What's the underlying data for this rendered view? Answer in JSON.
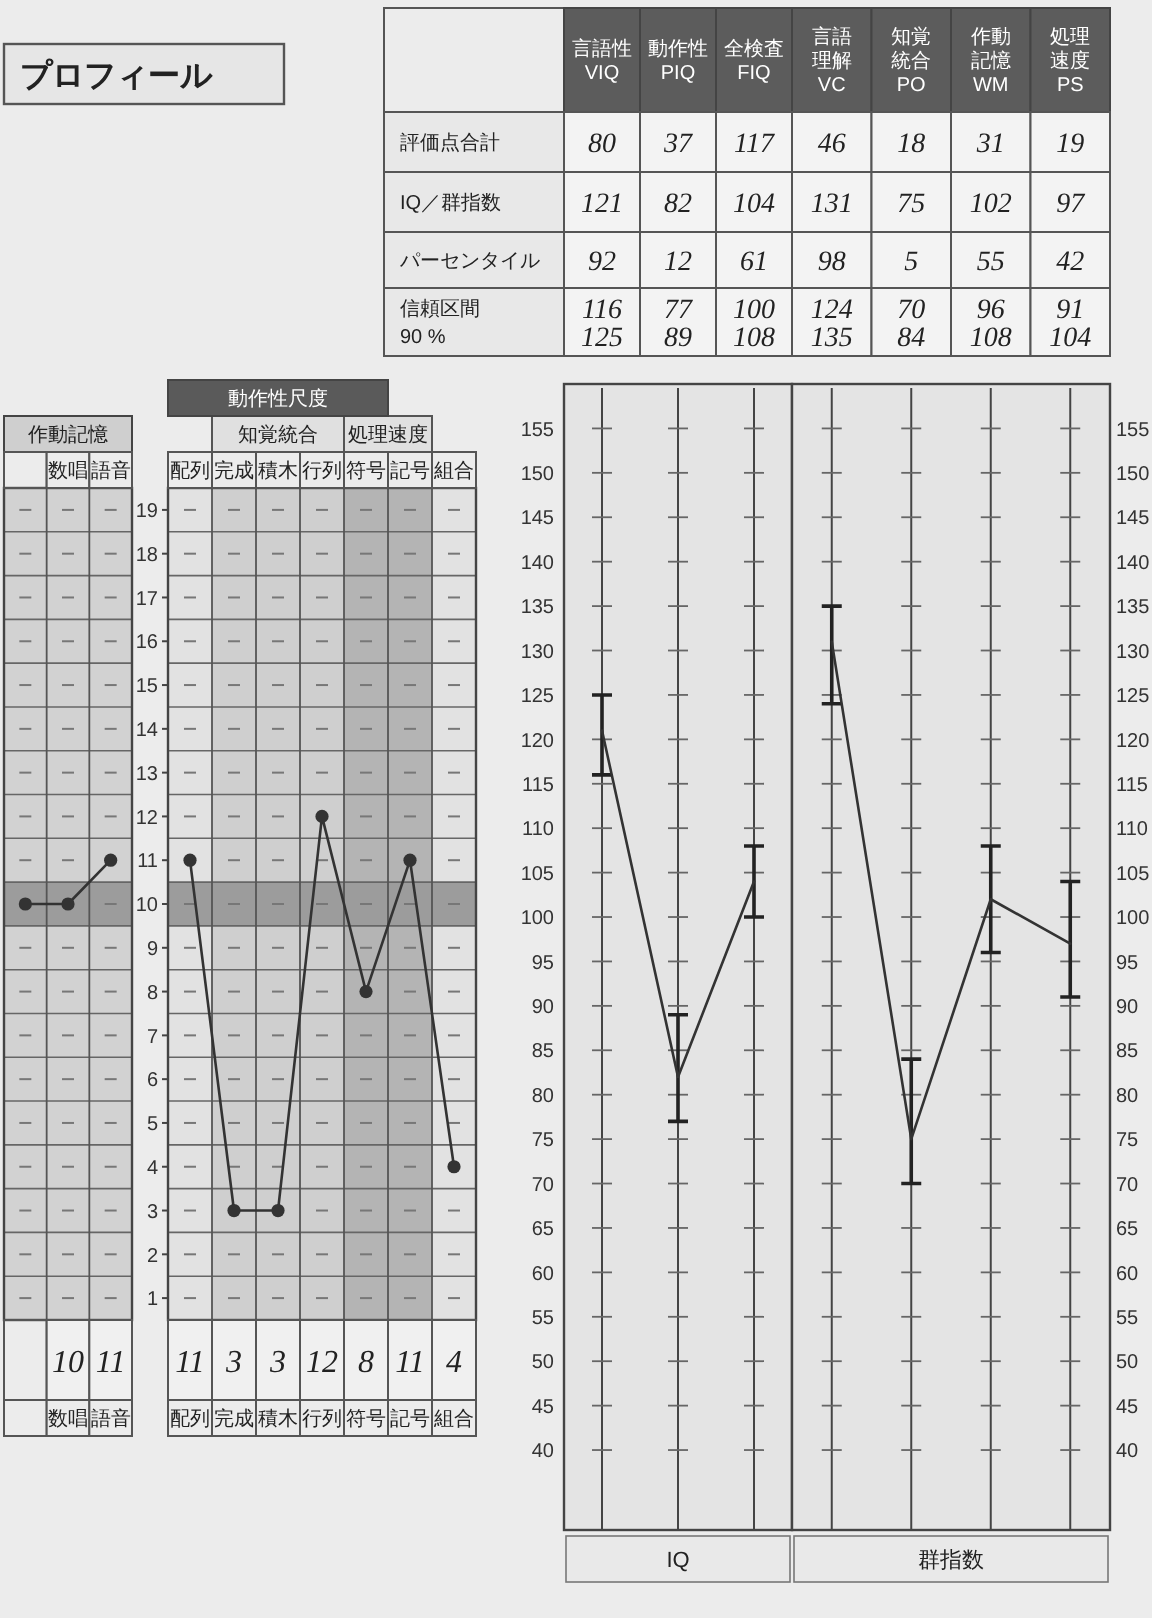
{
  "chart_data": [
    {
      "type": "other",
      "title": "プロフィール",
      "categories": [
        "言語性\nVIQ",
        "動作性\nPIQ",
        "全検査\nFIQ",
        "言語理解\nVC",
        "知覚統合\nPO",
        "作動記憶\nWM",
        "処理速度\nPS"
      ],
      "y_categories": [
        "評価点合計",
        "IQ／群指数",
        "パーセンタイル",
        "信頼区間\n90 %"
      ],
      "cell_labels": [
        [
          "80",
          "37",
          "117",
          "46",
          "18",
          "31",
          "19"
        ],
        [
          "121",
          "82",
          "104",
          "131",
          "75",
          "102",
          "97"
        ],
        [
          "92",
          "12",
          "61",
          "98",
          "5",
          "55",
          "42"
        ],
        [
          "116\n125",
          "77\n89",
          "100\n108",
          "124\n135",
          "70\n84",
          "96\n108",
          "91\n104"
        ]
      ]
    },
    {
      "type": "line",
      "title": "作動記憶",
      "categories": [
        null,
        "数唱",
        "語音"
      ],
      "values": [
        10,
        10,
        11
      ],
      "value_labels": [
        null,
        "10",
        "11"
      ],
      "color": "#333333",
      "ylim": [
        0.5,
        19.5
      ],
      "yticks": [
        1,
        2,
        3,
        4,
        5,
        6,
        7,
        8,
        9,
        10,
        11,
        12,
        13,
        14,
        15,
        16,
        17,
        18,
        19
      ],
      "tick_labels": "x",
      "marker": "circle",
      "grid": true,
      "bands": [
        {
          "axis": "y",
          "from": 9.5,
          "to": 10.5,
          "color": "#9c9c9c"
        }
      ]
    },
    {
      "type": "line",
      "title": "動作性尺度",
      "categories": [
        "配列",
        "完成",
        "積木",
        "行列",
        "符号",
        "記号",
        "組合"
      ],
      "values": [
        11,
        3,
        3,
        12,
        8,
        11,
        4
      ],
      "data_labels": true,
      "color": "#333333",
      "ylim": [
        0.5,
        19.5
      ],
      "yticks": [
        1,
        2,
        3,
        4,
        5,
        6,
        7,
        8,
        9,
        10,
        11,
        12,
        13,
        14,
        15,
        16,
        17,
        18,
        19
      ],
      "marker": "circle",
      "grid": true,
      "bands": [
        {
          "axis": "x",
          "from": "完成",
          "to": "行列",
          "label": "知覚統合",
          "color": "#cfcfcf"
        },
        {
          "axis": "x",
          "from": "符号",
          "to": "記号",
          "label": "処理速度",
          "color": "#b4b4b4"
        },
        {
          "axis": "y",
          "from": 9.5,
          "to": 10.5,
          "color": "#9c9c9c"
        }
      ]
    },
    {
      "type": "line",
      "xlabel": "IQ",
      "categories": [
        null,
        null,
        null
      ],
      "values": [
        121,
        82,
        104
      ],
      "errors": [
        [
          116,
          125
        ],
        [
          77,
          89
        ],
        [
          100,
          108
        ]
      ],
      "color": "#333333",
      "ylim": [
        31,
        160
      ],
      "yticks": [
        40,
        45,
        50,
        55,
        60,
        65,
        70,
        75,
        80,
        85,
        90,
        95,
        100,
        105,
        110,
        115,
        120,
        125,
        130,
        135,
        140,
        145,
        150,
        155
      ],
      "tick_labels": "y",
      "grid": "x"
    },
    {
      "type": "line",
      "xlabel": "群指数",
      "categories": [
        null,
        null,
        null,
        null
      ],
      "values": [
        131,
        75,
        102,
        97
      ],
      "errors": [
        [
          124,
          135
        ],
        [
          70,
          84
        ],
        [
          96,
          108
        ],
        [
          91,
          104
        ]
      ],
      "color": "#333333",
      "ylim": [
        31,
        160
      ],
      "yticks": [
        40,
        45,
        50,
        55,
        60,
        65,
        70,
        75,
        80,
        85,
        90,
        95,
        100,
        105,
        110,
        115,
        120,
        125,
        130,
        135,
        140,
        145,
        150,
        155
      ],
      "tick_labels": "y",
      "grid": "x"
    }
  ]
}
